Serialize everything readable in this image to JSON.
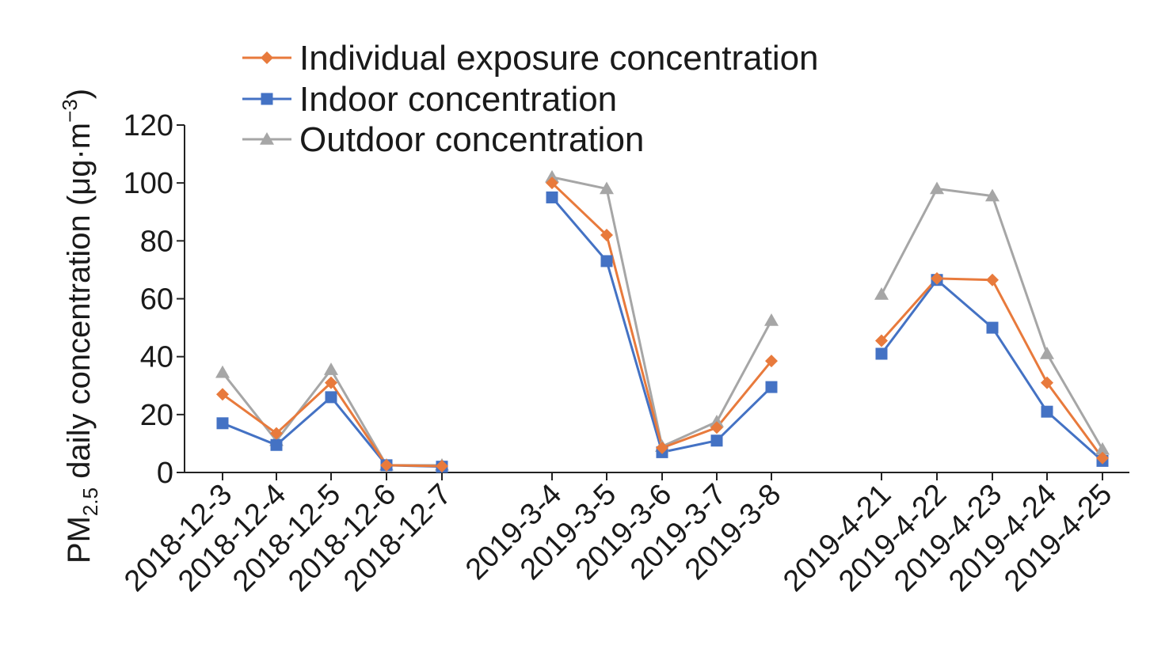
{
  "chart_data": {
    "type": "line",
    "ylabel_main": "PM",
    "ylabel_sub": "2.5",
    "ylabel_rest": " daily concentration (μg·m",
    "ylabel_sup": "−3",
    "ylabel_close": ")",
    "ylim": [
      0,
      120
    ],
    "yticks": [
      0,
      20,
      40,
      60,
      80,
      100,
      120
    ],
    "grid": false,
    "legend_position": "top-left",
    "categories": [
      "2018-12-3",
      "2018-12-4",
      "2018-12-5",
      "2018-12-6",
      "2018-12-7",
      "2019-3-4",
      "2019-3-5",
      "2019-3-6",
      "2019-3-7",
      "2019-3-8",
      "2019-4-21",
      "2019-4-22",
      "2019-4-23",
      "2019-4-24",
      "2019-4-25"
    ],
    "groups": [
      [
        0,
        1,
        2,
        3,
        4
      ],
      [
        5,
        6,
        7,
        8,
        9
      ],
      [
        10,
        11,
        12,
        13,
        14
      ]
    ],
    "series": [
      {
        "name": "Individual exposure concentration",
        "color": "#E87A3C",
        "marker": "diamond",
        "values": [
          27,
          13.5,
          31,
          2.5,
          2.2,
          100,
          82,
          8.5,
          15.5,
          38.5,
          45.5,
          67,
          66.5,
          31,
          5
        ]
      },
      {
        "name": "Indoor concentration",
        "color": "#4472C4",
        "marker": "square",
        "values": [
          17,
          9.5,
          26,
          2.5,
          2,
          95,
          73,
          7,
          11,
          29.5,
          41,
          66.5,
          50,
          21,
          4
        ]
      },
      {
        "name": "Outdoor concentration",
        "color": "#A6A6A6",
        "marker": "triangle",
        "values": [
          34.5,
          11,
          35.5,
          2.5,
          2.5,
          102,
          98,
          9,
          17.5,
          52.5,
          61.5,
          98,
          95.5,
          41,
          8
        ]
      }
    ]
  }
}
